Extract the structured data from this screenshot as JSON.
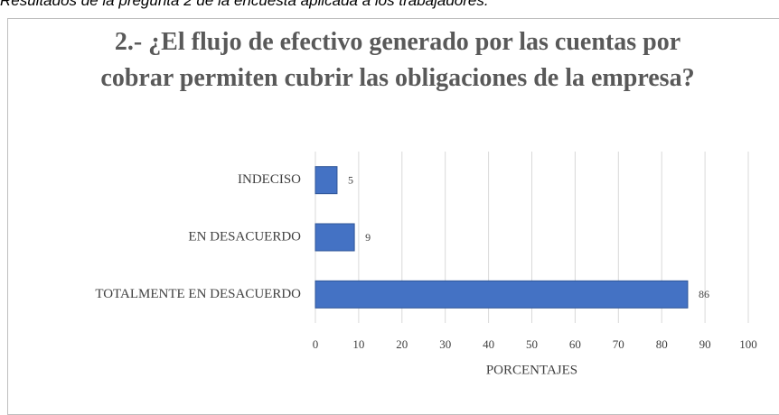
{
  "caption": "Resultados de la pregunta 2 de la encuesta aplicada a los trabajadores.",
  "chart_data": {
    "type": "bar",
    "orientation": "horizontal",
    "title": "2.- ¿El flujo de efectivo generado por las cuentas por cobrar permiten cubrir las obligaciones de la empresa?",
    "x_label": "PORCENTAJES",
    "categories": [
      "INDECISO",
      "EN DESACUERDO",
      "TOTALMENTE EN DESACUERDO"
    ],
    "values": [
      5,
      9,
      86
    ],
    "color": "#4472c4",
    "xlim": [
      0,
      100
    ],
    "xticks": [
      0,
      10,
      20,
      30,
      40,
      50,
      60,
      70,
      80,
      90,
      100
    ],
    "grid": true
  }
}
